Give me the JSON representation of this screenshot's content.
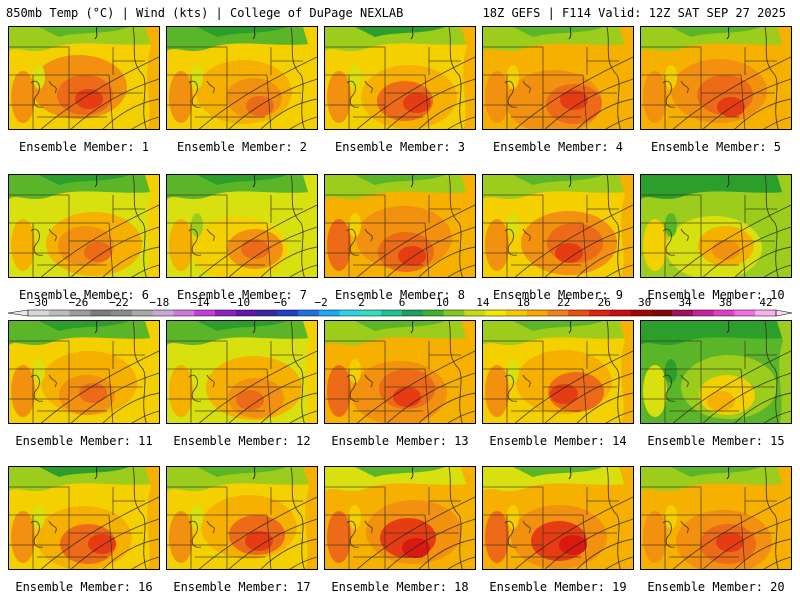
{
  "header": {
    "left": "850mb Temp (°C) | Wind (kts) | College of DuPage NEXLAB",
    "right": "18Z GEFS | F114 Valid: 12Z SAT SEP 27 2025"
  },
  "colorbar": {
    "ticks": [
      "-30",
      "-26",
      "-22",
      "-18",
      "-14",
      "-10",
      "-6",
      "-2",
      "2",
      "6",
      "10",
      "14",
      "18",
      "22",
      "26",
      "30",
      "34",
      "38",
      "42"
    ],
    "colors": [
      "#d8d8d8",
      "#bcbcbc",
      "#9c9c9c",
      "#7c7c7c",
      "#8a8a8a",
      "#a8a8a8",
      "#c8a8d8",
      "#d078e0",
      "#c040d8",
      "#9020c0",
      "#6018a8",
      "#3828a0",
      "#2040c8",
      "#2070e0",
      "#20a8f0",
      "#30d0e8",
      "#30e0c0",
      "#20c090",
      "#20a060",
      "#40b030",
      "#80c820",
      "#c8dc10",
      "#f0e800",
      "#f8c800",
      "#f8a800",
      "#f08020",
      "#e85010",
      "#e02010",
      "#c81010",
      "#a00808",
      "#800808",
      "#a01060",
      "#c820a0",
      "#e040c8",
      "#f070e0",
      "#f8b0f0"
    ]
  },
  "members": [
    {
      "label": "Ensemble Member: 1",
      "hue": 0.58
    },
    {
      "label": "Ensemble Member: 2",
      "hue": 0.5
    },
    {
      "label": "Ensemble Member: 3",
      "hue": 0.55
    },
    {
      "label": "Ensemble Member: 4",
      "hue": 0.6
    },
    {
      "label": "Ensemble Member: 5",
      "hue": 0.6
    },
    {
      "label": "Ensemble Member: 6",
      "hue": 0.48
    },
    {
      "label": "Ensemble Member: 7",
      "hue": 0.42
    },
    {
      "label": "Ensemble Member: 8",
      "hue": 0.62
    },
    {
      "label": "Ensemble Member: 9",
      "hue": 0.58
    },
    {
      "label": "Ensemble Member: 10",
      "hue": 0.3
    },
    {
      "label": "Ensemble Member: 11",
      "hue": 0.5
    },
    {
      "label": "Ensemble Member: 12",
      "hue": 0.48
    },
    {
      "label": "Ensemble Member: 13",
      "hue": 0.62
    },
    {
      "label": "Ensemble Member: 14",
      "hue": 0.56
    },
    {
      "label": "Ensemble Member: 15",
      "hue": 0.22
    },
    {
      "label": "Ensemble Member: 16",
      "hue": 0.55
    },
    {
      "label": "Ensemble Member: 17",
      "hue": 0.56
    },
    {
      "label": "Ensemble Member: 18",
      "hue": 0.66
    },
    {
      "label": "Ensemble Member: 19",
      "hue": 0.64
    },
    {
      "label": "Ensemble Member: 20",
      "hue": 0.6
    }
  ]
}
